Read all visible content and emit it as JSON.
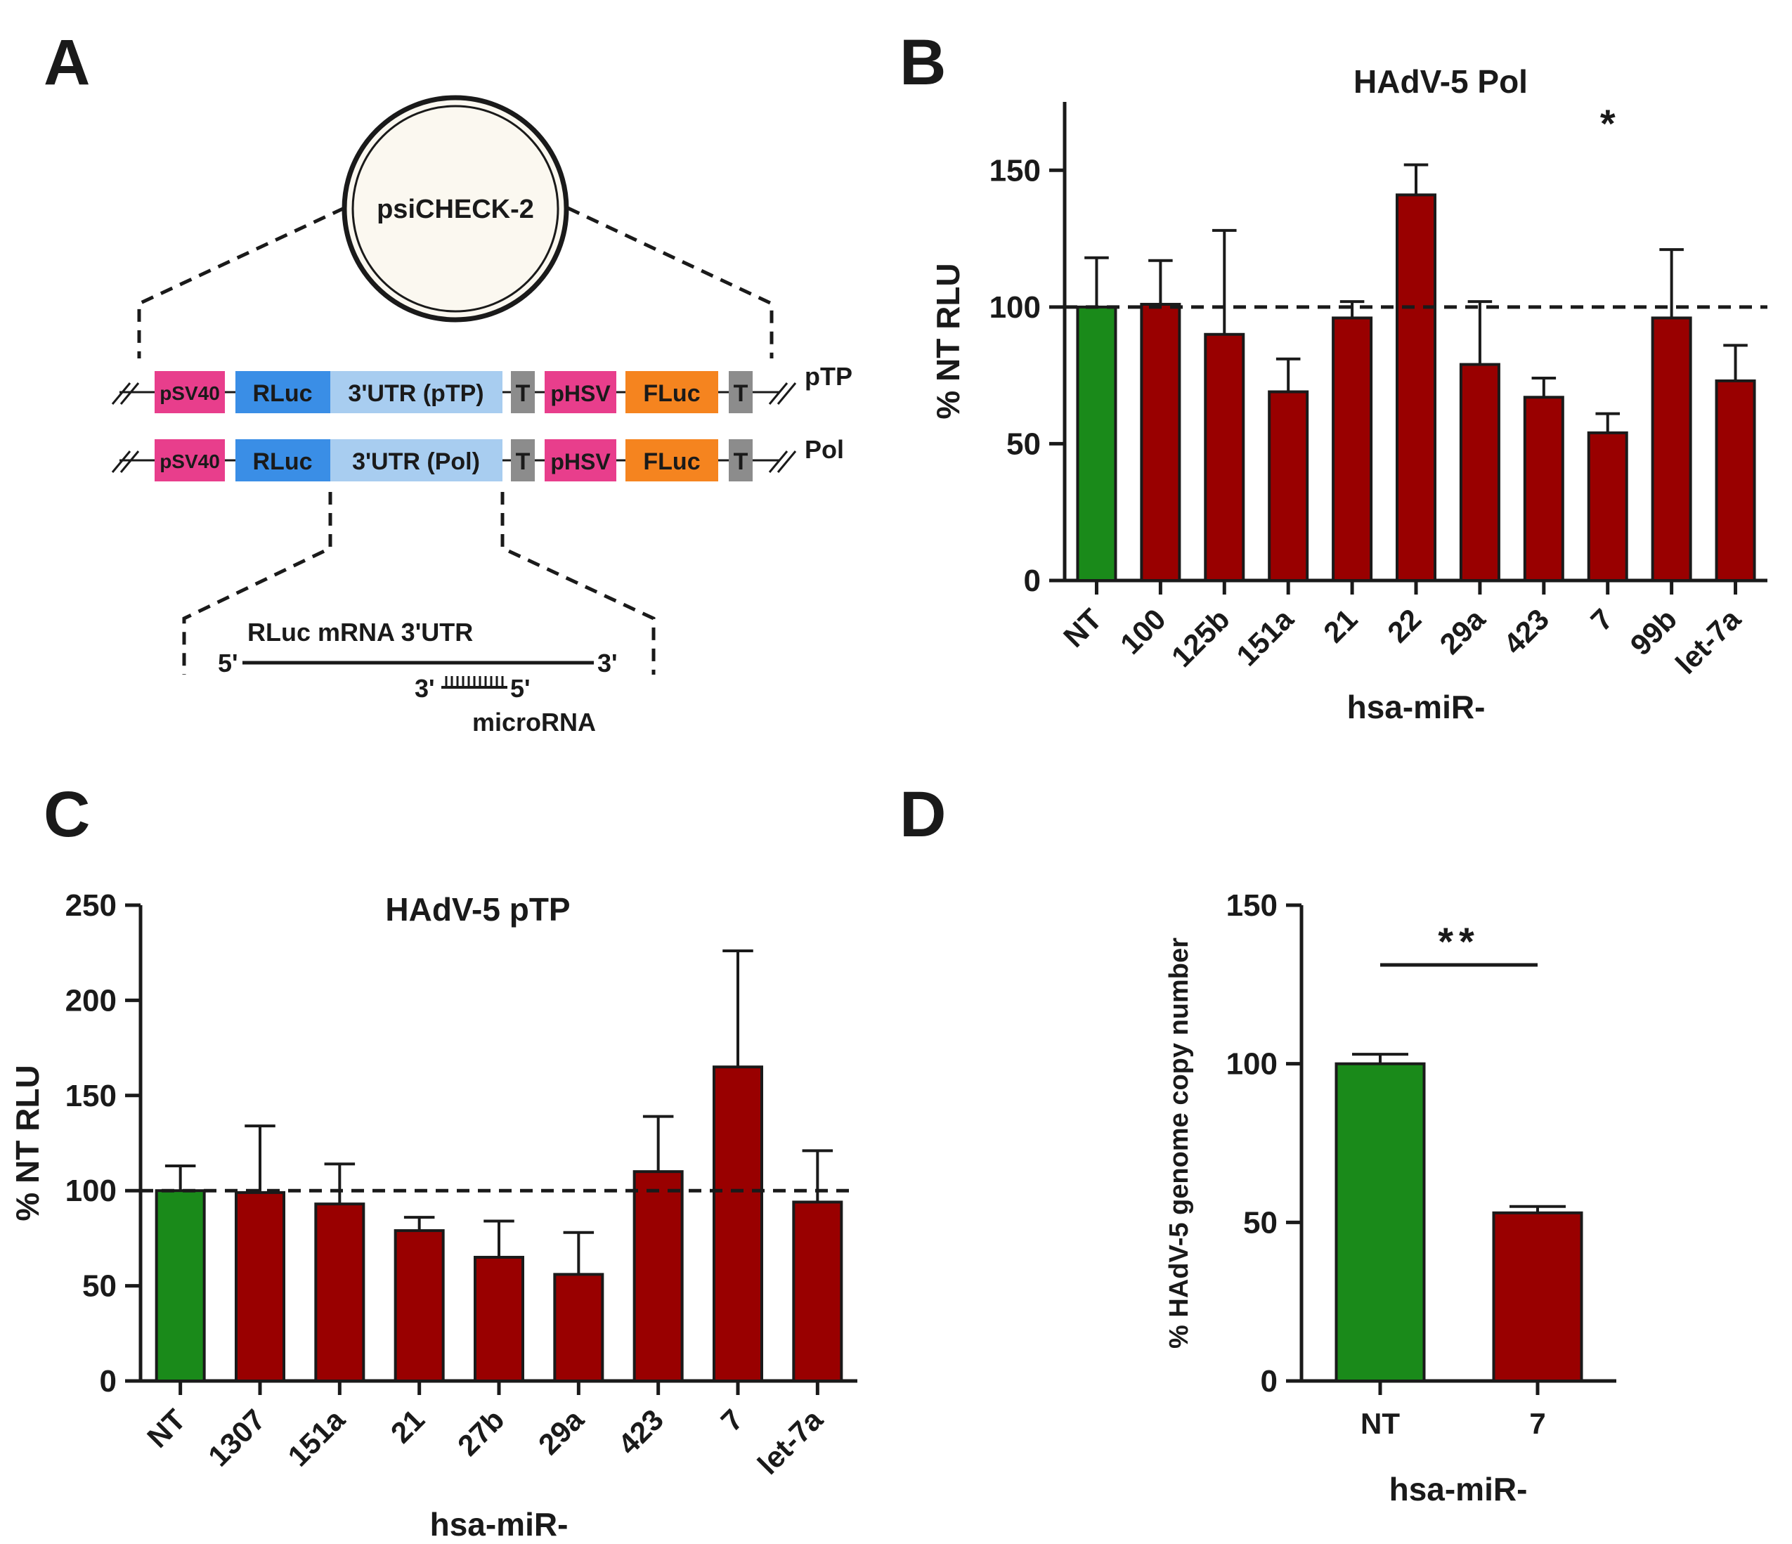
{
  "panel_labels": {
    "a": "A",
    "b": "B",
    "c": "C",
    "d": "D"
  },
  "colors": {
    "control": "#1a8a1a",
    "treated": "#990000",
    "pSV40": "#e83e8c",
    "rluc": "#3a8ee6",
    "utr": "#a8cdf0",
    "t": "#8c8c8c",
    "fluc": "#f5841f",
    "plasmid_fill": "#fbf8f0"
  },
  "diagram": {
    "plasmid_label": "psiCHECK-2",
    "rows": [
      {
        "name": "pTP",
        "segments": {
          "pSV40": "pSV40",
          "rluc": "RLuc",
          "utr": "3'UTR (pTP)",
          "t1": "T",
          "phsv": "pHSV",
          "fluc": "FLuc",
          "t2": "T"
        }
      },
      {
        "name": "Pol",
        "segments": {
          "pSV40": "pSV40",
          "rluc": "RLuc",
          "utr": "3'UTR (Pol)",
          "t1": "T",
          "phsv": "pHSV",
          "fluc": "FLuc",
          "t2": "T"
        }
      }
    ],
    "mrna_label": "RLuc mRNA 3'UTR",
    "five_prime": "5'",
    "three_prime": "3'",
    "mirna_three": "3'",
    "mirna_five": "5'",
    "microrna_label": "microRNA"
  },
  "chart_data": [
    {
      "panel": "B",
      "type": "bar",
      "title": "HAdV-5 Pol",
      "xlabel": "hsa-miR-",
      "ylabel": "% NT RLU",
      "ylim": [
        0,
        175
      ],
      "yticks": [
        0,
        50,
        100,
        150
      ],
      "reference_line": 100,
      "categories": [
        "NT",
        "100",
        "125b",
        "151a",
        "21",
        "22",
        "29a",
        "423",
        "7",
        "99b",
        "let-7a"
      ],
      "values": [
        100,
        101,
        90,
        69,
        96,
        141,
        79,
        67,
        54,
        96,
        73
      ],
      "errors": [
        18,
        16,
        38,
        12,
        6,
        11,
        23,
        7,
        7,
        25,
        13
      ],
      "annotations": [
        {
          "category": "7",
          "text": "*"
        }
      ]
    },
    {
      "panel": "C",
      "type": "bar",
      "title": "HAdV-5 pTP",
      "xlabel": "hsa-miR-",
      "ylabel": "% NT RLU",
      "ylim": [
        0,
        250
      ],
      "yticks": [
        0,
        50,
        100,
        150,
        200,
        250
      ],
      "reference_line": 100,
      "categories": [
        "NT",
        "1307",
        "151a",
        "21",
        "27b",
        "29a",
        "423",
        "7",
        "let-7a"
      ],
      "values": [
        100,
        99,
        93,
        79,
        65,
        56,
        110,
        165,
        94
      ],
      "errors": [
        13,
        35,
        21,
        7,
        19,
        22,
        29,
        61,
        27
      ],
      "annotations": []
    },
    {
      "panel": "D",
      "type": "bar",
      "title": "",
      "xlabel": "hsa-miR-",
      "ylabel": "% HAdV-5 genome copy number",
      "ylim": [
        0,
        150
      ],
      "yticks": [
        0,
        50,
        100,
        150
      ],
      "reference_line": null,
      "categories": [
        "NT",
        "7"
      ],
      "values": [
        100,
        53
      ],
      "errors": [
        3,
        2
      ],
      "annotations": [
        {
          "text": "**",
          "between": [
            "NT",
            "7"
          ]
        }
      ]
    }
  ]
}
